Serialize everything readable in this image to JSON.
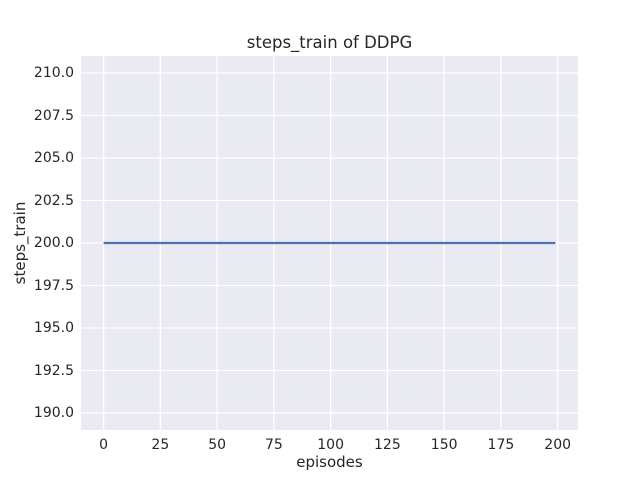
{
  "chart_data": {
    "type": "line",
    "title": "steps_train of DDPG",
    "xlabel": "episodes",
    "ylabel": "steps_train",
    "xlim": [
      -9.95,
      208.95
    ],
    "ylim": [
      189,
      211
    ],
    "xticks": {
      "values": [
        0,
        25,
        50,
        75,
        100,
        125,
        150,
        175,
        200
      ],
      "labels": [
        "0",
        "25",
        "50",
        "75",
        "100",
        "125",
        "150",
        "175",
        "200"
      ]
    },
    "yticks": {
      "values": [
        190,
        192.5,
        195,
        197.5,
        200,
        202.5,
        205,
        207.5,
        210
      ],
      "labels": [
        "190.0",
        "192.5",
        "195.0",
        "197.5",
        "200.0",
        "202.5",
        "205.0",
        "207.5",
        "210.0"
      ]
    },
    "grid": true,
    "legend": "none",
    "series": [
      {
        "name": "steps_train",
        "color": "#4c72b0",
        "linewidth": 2.2,
        "x": [
          0,
          199
        ],
        "y": [
          200,
          200
        ]
      }
    ],
    "colors": {
      "figure_bg": "#ffffff",
      "plot_bg": "#eaeaf2",
      "grid": "#ffffff",
      "text": "#262626"
    }
  }
}
